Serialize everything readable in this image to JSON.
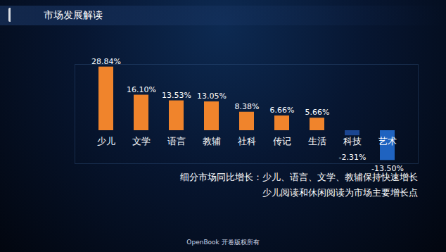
{
  "chart_data": {
    "type": "bar",
    "title": "市场发展解读",
    "categories": [
      "少儿",
      "文学",
      "语言",
      "教辅",
      "社科",
      "传记",
      "生活",
      "科技",
      "艺术"
    ],
    "values": [
      28.84,
      16.1,
      13.53,
      13.05,
      8.38,
      6.66,
      5.66,
      -2.31,
      -13.5
    ],
    "value_labels": [
      "28.84%",
      "16.10%",
      "13.53%",
      "13.05%",
      "8.38%",
      "6.66%",
      "5.66%",
      "-2.31%",
      "-13.50%"
    ],
    "colors": [
      "#f0842c",
      "#f0842c",
      "#f0842c",
      "#f0842c",
      "#f0842c",
      "#f0842c",
      "#f0842c",
      "#1b4590",
      "#1f63c0"
    ],
    "ylim": [
      -15,
      30
    ],
    "data_labels": true,
    "tick_labels": "x",
    "annotations": [
      "细分市场同比增长：少儿、语言、文学、教辅保持快速增长",
      "少儿阅读和休闲阅读为市场主要增长点"
    ],
    "caption": "OpenBook 开卷版权所有"
  }
}
